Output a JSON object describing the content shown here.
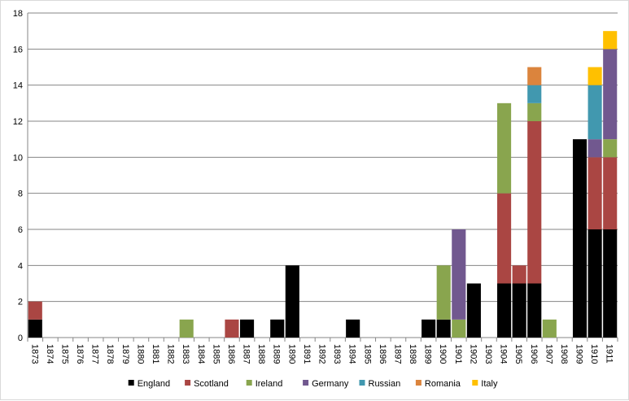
{
  "chart_data": {
    "type": "bar",
    "stacked": true,
    "title": "",
    "xlabel": "",
    "ylabel": "",
    "ylim": [
      0,
      18
    ],
    "yticks": [
      0,
      2,
      4,
      6,
      8,
      10,
      12,
      14,
      16,
      18
    ],
    "grid": true,
    "legend_position": "bottom",
    "categories": [
      "1873",
      "1874",
      "1875",
      "1876",
      "1877",
      "1878",
      "1879",
      "1880",
      "1881",
      "1882",
      "1883",
      "1884",
      "1885",
      "1886",
      "1887",
      "1888",
      "1889",
      "1890",
      "1891",
      "1892",
      "1893",
      "1894",
      "1895",
      "1896",
      "1897",
      "1898",
      "1899",
      "1900",
      "1901",
      "1902",
      "1903",
      "1904",
      "1905",
      "1906",
      "1907",
      "1908",
      "1909",
      "1910",
      "1911"
    ],
    "series": [
      {
        "name": "England",
        "color": "#000000",
        "values": [
          1,
          0,
          0,
          0,
          0,
          0,
          0,
          0,
          0,
          0,
          0,
          0,
          0,
          0,
          1,
          0,
          1,
          4,
          0,
          0,
          0,
          1,
          0,
          0,
          0,
          0,
          1,
          1,
          0,
          3,
          0,
          3,
          3,
          3,
          0,
          0,
          11,
          6,
          6
        ]
      },
      {
        "name": "Scotland",
        "color": "#AA4643",
        "values": [
          1,
          0,
          0,
          0,
          0,
          0,
          0,
          0,
          0,
          0,
          0,
          0,
          0,
          1,
          0,
          0,
          0,
          0,
          0,
          0,
          0,
          0,
          0,
          0,
          0,
          0,
          0,
          0,
          0,
          0,
          0,
          5,
          1,
          9,
          0,
          0,
          0,
          4,
          4
        ]
      },
      {
        "name": "Ireland",
        "color": "#89A54E",
        "values": [
          0,
          0,
          0,
          0,
          0,
          0,
          0,
          0,
          0,
          0,
          1,
          0,
          0,
          0,
          0,
          0,
          0,
          0,
          0,
          0,
          0,
          0,
          0,
          0,
          0,
          0,
          0,
          3,
          1,
          0,
          0,
          5,
          0,
          1,
          1,
          0,
          0,
          0,
          1
        ]
      },
      {
        "name": "Germany",
        "color": "#71588F",
        "values": [
          0,
          0,
          0,
          0,
          0,
          0,
          0,
          0,
          0,
          0,
          0,
          0,
          0,
          0,
          0,
          0,
          0,
          0,
          0,
          0,
          0,
          0,
          0,
          0,
          0,
          0,
          0,
          0,
          5,
          0,
          0,
          0,
          0,
          0,
          0,
          0,
          0,
          1,
          5
        ]
      },
      {
        "name": "Russian",
        "color": "#4198AF",
        "values": [
          0,
          0,
          0,
          0,
          0,
          0,
          0,
          0,
          0,
          0,
          0,
          0,
          0,
          0,
          0,
          0,
          0,
          0,
          0,
          0,
          0,
          0,
          0,
          0,
          0,
          0,
          0,
          0,
          0,
          0,
          0,
          0,
          0,
          1,
          0,
          0,
          0,
          3,
          0
        ]
      },
      {
        "name": "Romania",
        "color": "#DB843D",
        "values": [
          0,
          0,
          0,
          0,
          0,
          0,
          0,
          0,
          0,
          0,
          0,
          0,
          0,
          0,
          0,
          0,
          0,
          0,
          0,
          0,
          0,
          0,
          0,
          0,
          0,
          0,
          0,
          0,
          0,
          0,
          0,
          0,
          0,
          1,
          0,
          0,
          0,
          0,
          0
        ]
      },
      {
        "name": "Italy",
        "color": "#FFC000",
        "values": [
          0,
          0,
          0,
          0,
          0,
          0,
          0,
          0,
          0,
          0,
          0,
          0,
          0,
          0,
          0,
          0,
          0,
          0,
          0,
          0,
          0,
          0,
          0,
          0,
          0,
          0,
          0,
          0,
          0,
          0,
          0,
          0,
          0,
          0,
          0,
          0,
          0,
          1,
          1
        ]
      }
    ]
  }
}
